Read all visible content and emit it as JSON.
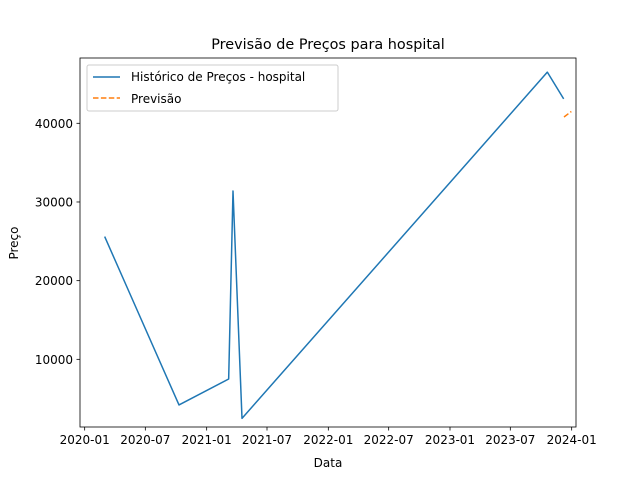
{
  "chart_data": {
    "type": "line",
    "title": "Previsão de Preços para hospital",
    "xlabel": "Data",
    "ylabel": "Preço",
    "x_ticks": [
      "2020-01",
      "2020-07",
      "2021-01",
      "2021-07",
      "2022-01",
      "2022-07",
      "2023-01",
      "2023-07",
      "2024-01"
    ],
    "y_ticks": [
      10000,
      20000,
      30000,
      40000
    ],
    "xlim": [
      "2019-12-18",
      "2024-01-14"
    ],
    "ylim": [
      1400,
      48300
    ],
    "grid": false,
    "legend_position": "upper-left",
    "series": [
      {
        "name": "Histórico de Preços - hospital",
        "color": "#1f77b4",
        "style": "solid",
        "points": [
          {
            "x": "2020-03-01",
            "y": 25600
          },
          {
            "x": "2020-10-10",
            "y": 4200
          },
          {
            "x": "2021-03-08",
            "y": 7500
          },
          {
            "x": "2021-03-21",
            "y": 31400
          },
          {
            "x": "2021-04-17",
            "y": 2500
          },
          {
            "x": "2023-10-20",
            "y": 46500
          },
          {
            "x": "2023-12-08",
            "y": 43100
          }
        ]
      },
      {
        "name": "Previsão",
        "color": "#ff7f0e",
        "style": "dashed",
        "points": [
          {
            "x": "2023-12-09",
            "y": 40800
          },
          {
            "x": "2023-12-31",
            "y": 41500
          }
        ]
      }
    ]
  }
}
